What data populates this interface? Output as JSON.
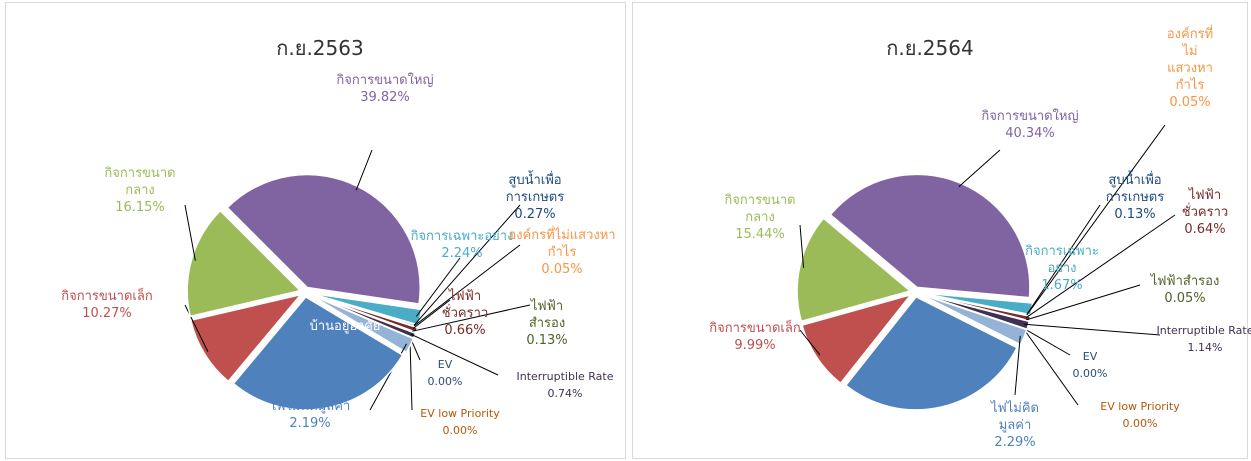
{
  "chart_data": [
    {
      "type": "pie",
      "title": "ก.ย.2563",
      "categories": [
        "กิจการขนาดใหญ่",
        "กิจการเฉพาะอย่าง",
        "สูบน้ำเพื่อการเกษตร",
        "องค์กรที่ไม่แสวงหากำไร",
        "ไฟฟ้าชั่วคราว",
        "ไฟฟ้าสำรอง",
        "Interruptible Rate",
        "EV",
        "EV low Priority",
        "ไฟไม่คิดมูลค่า",
        "บ้านอยู่อาศัย",
        "กิจการขนาดเล็ก",
        "กิจการขนาดกลาง"
      ],
      "values": [
        39.82,
        2.24,
        0.27,
        0.05,
        0.66,
        0.13,
        0.74,
        0.0,
        0.0,
        2.19,
        27.48,
        10.27,
        16.15
      ],
      "value_labels": [
        "39.82%",
        "2.24%",
        "0.27%",
        "0.05%",
        "0.66%",
        "0.13%",
        "0.74%",
        "0.00%",
        "0.00%",
        "2.19%",
        null,
        "10.27%",
        "16.15%"
      ],
      "colors": [
        "#8064a2",
        "#4bacc6",
        "#1f497d",
        "#f79646",
        "#772c2a",
        "#4f6228",
        "#403152",
        "#2c4d75",
        "#b65708",
        "#95b3d7",
        "#4f81bd",
        "#c0504d",
        "#9bbb59"
      ]
    },
    {
      "type": "pie",
      "title": "ก.ย.2564",
      "categories": [
        "กิจการขนาดใหญ่",
        "กิจการเฉพาะอย่าง",
        "สูบน้ำเพื่อการเกษตร",
        "องค์กรที่ไม่แสวงหากำไร",
        "ไฟฟ้าชั่วคราว",
        "ไฟฟ้าสำรอง",
        "Interruptible Rate",
        "EV",
        "EV low Priority",
        "ไฟไม่คิดมูลค่า",
        null,
        "กิจการขนาดเล็ก",
        "กิจการขนาดกลาง"
      ],
      "values": [
        40.34,
        1.67,
        0.13,
        0.05,
        0.64,
        0.05,
        1.14,
        0.0,
        0.0,
        2.29,
        28.26,
        9.99,
        15.44
      ],
      "value_labels": [
        "40.34%",
        "1.67%",
        "0.13%",
        "0.05%",
        "0.64%",
        "0.05%",
        "1.14%",
        "0.00%",
        "0.00%",
        "2.29%",
        null,
        "9.99%",
        "15.44%"
      ],
      "colors": [
        "#8064a2",
        "#4bacc6",
        "#1f497d",
        "#f79646",
        "#772c2a",
        "#4f6228",
        "#403152",
        "#2c4d75",
        "#b65708",
        "#95b3d7",
        "#4f81bd",
        "#c0504d",
        "#9bbb59"
      ]
    }
  ]
}
